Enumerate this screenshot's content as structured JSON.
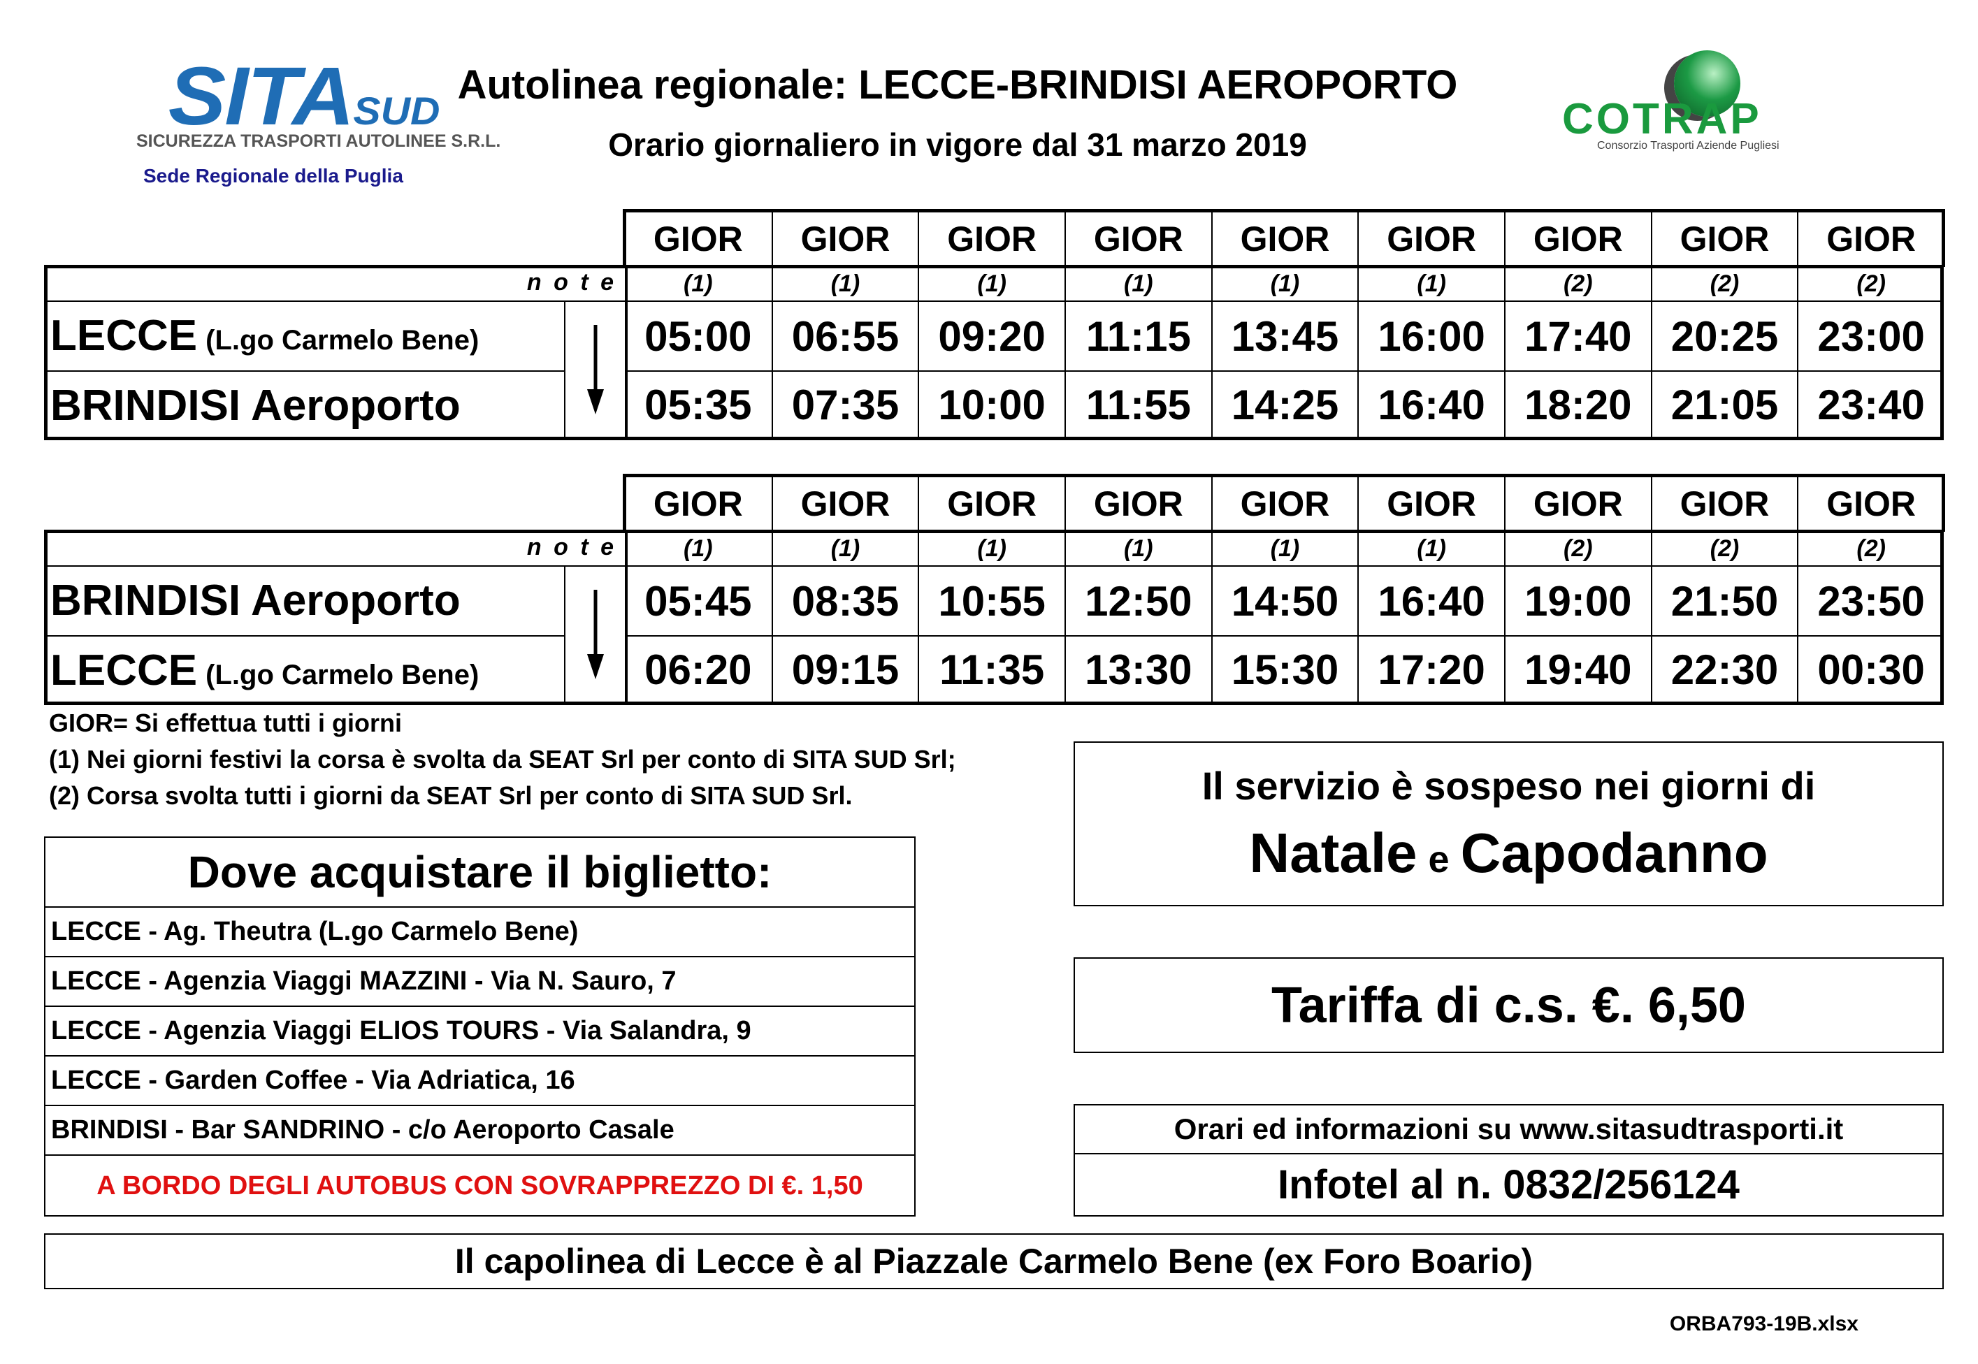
{
  "logos": {
    "sita": {
      "main": "SITA",
      "suffix": "SUD",
      "subtitle": "SICUREZZA TRASPORTI AUTOLINEE S.R.L.",
      "region": "Sede Regionale della Puglia",
      "color": "#1f6db5"
    },
    "cotrap": {
      "name": "COTRAP",
      "subtitle": "Consorzio Trasporti Aziende Pugliesi",
      "color": "#1a9a3e"
    }
  },
  "header": {
    "title": "Autolinea regionale: LECCE-BRINDISI AEROPORTO",
    "subtitle": "Orario giornaliero in vigore dal 31 marzo 2019"
  },
  "note_label": "n o t e",
  "tables": [
    {
      "days": [
        "GIOR",
        "GIOR",
        "GIOR",
        "GIOR",
        "GIOR",
        "GIOR",
        "GIOR",
        "GIOR",
        "GIOR"
      ],
      "notes": [
        "(1)",
        "(1)",
        "(1)",
        "(1)",
        "(1)",
        "(1)",
        "(2)",
        "(2)",
        "(2)"
      ],
      "stops": [
        {
          "name": "LECCE",
          "detail": "(L.go Carmelo Bene)",
          "times": [
            "05:00",
            "06:55",
            "09:20",
            "11:15",
            "13:45",
            "16:00",
            "17:40",
            "20:25",
            "23:00"
          ]
        },
        {
          "name": "BRINDISI Aeroporto",
          "detail": "",
          "times": [
            "05:35",
            "07:35",
            "10:00",
            "11:55",
            "14:25",
            "16:40",
            "18:20",
            "21:05",
            "23:40"
          ]
        }
      ]
    },
    {
      "days": [
        "GIOR",
        "GIOR",
        "GIOR",
        "GIOR",
        "GIOR",
        "GIOR",
        "GIOR",
        "GIOR",
        "GIOR"
      ],
      "notes": [
        "(1)",
        "(1)",
        "(1)",
        "(1)",
        "(1)",
        "(1)",
        "(2)",
        "(2)",
        "(2)"
      ],
      "stops": [
        {
          "name": "BRINDISI Aeroporto",
          "detail": "",
          "times": [
            "05:45",
            "08:35",
            "10:55",
            "12:50",
            "14:50",
            "16:40",
            "19:00",
            "21:50",
            "23:50"
          ]
        },
        {
          "name": "LECCE",
          "detail": "(L.go Carmelo Bene)",
          "times": [
            "06:20",
            "09:15",
            "11:35",
            "13:30",
            "15:30",
            "17:20",
            "19:40",
            "22:30",
            "00:30"
          ]
        }
      ]
    }
  ],
  "legend": [
    "GIOR= Si effettua tutti i giorni",
    "(1) Nei giorni festivi la corsa è svolta da SEAT Srl per conto di SITA SUD Srl;",
    "(2) Corsa svolta tutti i giorni da SEAT Srl per conto di SITA SUD Srl."
  ],
  "tickets": {
    "title": "Dove acquistare il biglietto:",
    "places": [
      "LECCE - Ag. Theutra (L.go Carmelo Bene)",
      "LECCE - Agenzia Viaggi MAZZINI - Via N. Sauro, 7",
      "LECCE - Agenzia Viaggi ELIOS TOURS - Via Salandra, 9",
      "LECCE - Garden Coffee - Via Adriatica, 16",
      "BRINDISI - Bar SANDRINO - c/o Aeroporto Casale"
    ],
    "onboard": "A BORDO DEGLI AUTOBUS CON SOVRAPPREZZO DI €. 1,50",
    "onboard_color": "#e01010"
  },
  "suspension": {
    "line1": "Il servizio è sospeso nei giorni di",
    "word1": "Natale",
    "conj": "e",
    "word2": "Capodanno"
  },
  "fare": "Tariffa di c.s. €. 6,50",
  "info": {
    "web": "Orari ed informazioni su www.sitasudtrasporti.it",
    "phone": "Infotel al n. 0832/256124"
  },
  "terminus": "Il capolinea di Lecce è al Piazzale Carmelo Bene (ex Foro Boario)",
  "file": "ORBA793-19B.xlsx"
}
